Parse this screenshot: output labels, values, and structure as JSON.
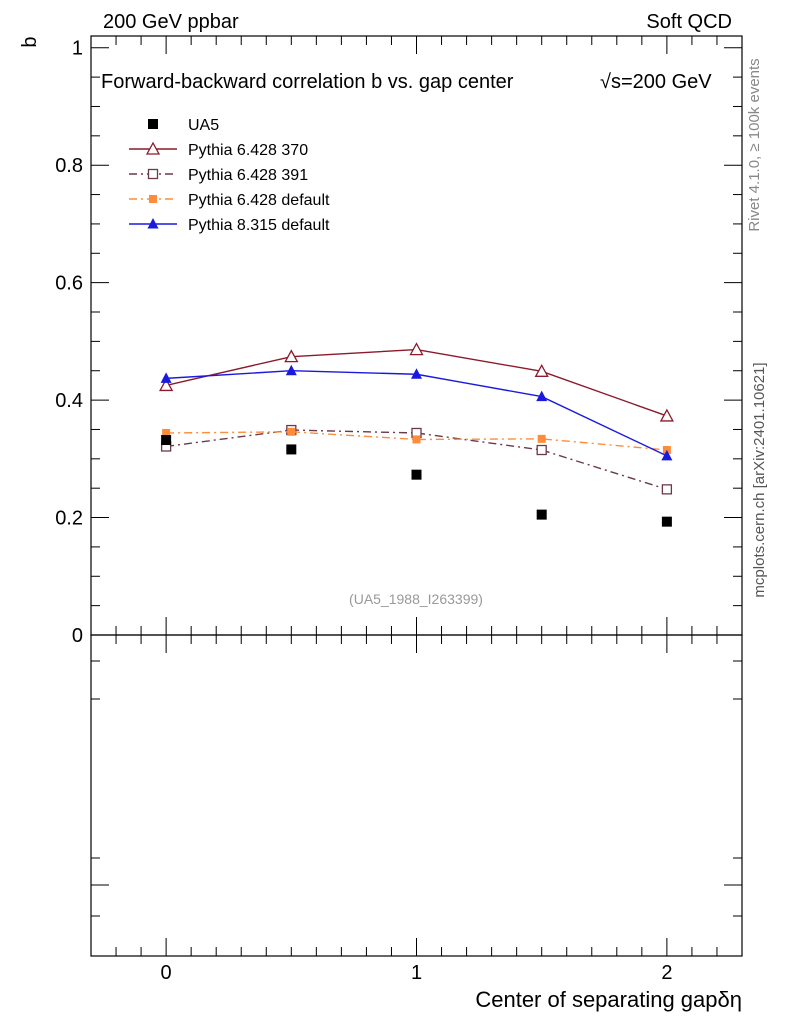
{
  "header": {
    "left": "200 GeV ppbar",
    "right": "Soft QCD"
  },
  "side_labels": {
    "rivet": "Rivet 4.1.0, ≥ 100k events",
    "mcplots": "mcplots.cern.ch [arXiv:2401.10621]"
  },
  "reference_tag": "(UA5_1988_I263399)",
  "colors": {
    "ua5": "#000000",
    "p370": "#8b1a2b",
    "p391": "#6b3a4a",
    "p6def": "#ff8c3a",
    "p8def": "#1a1adf"
  },
  "chart_data": {
    "type": "line",
    "title": "Forward-backward correlation b  vs. gap center",
    "title_suffix": "√s=200 GeV",
    "xlabel": "Center of separating gapδη",
    "ylabel": "b",
    "xlim": [
      -0.3,
      2.3
    ],
    "ylim": [
      0,
      1.02
    ],
    "x_ticks": [
      "0",
      "1",
      "2"
    ],
    "y_ticks": [
      "0",
      "0.2",
      "0.4",
      "0.6",
      "0.8",
      "1"
    ],
    "x": [
      0,
      0.5,
      1,
      1.5,
      2
    ],
    "series": [
      {
        "name": "UA5",
        "marker": "square-filled",
        "line": "none",
        "color_key": "ua5",
        "values": [
          0.332,
          0.316,
          0.273,
          0.205,
          0.193
        ]
      },
      {
        "name": "Pythia 6.428 370",
        "marker": "triangle-open",
        "line": "solid",
        "color_key": "p370",
        "values": [
          0.425,
          0.474,
          0.486,
          0.449,
          0.373
        ]
      },
      {
        "name": "Pythia 6.428 391",
        "marker": "square-open",
        "line": "dashdot",
        "color_key": "p391",
        "values": [
          0.321,
          0.349,
          0.344,
          0.315,
          0.248
        ]
      },
      {
        "name": "Pythia 6.428 default",
        "marker": "square-filled-small",
        "line": "dashdot",
        "color_key": "p6def",
        "values": [
          0.344,
          0.346,
          0.333,
          0.334,
          0.315
        ]
      },
      {
        "name": "Pythia 8.315 default",
        "marker": "triangle-filled",
        "line": "solid",
        "color_key": "p8def",
        "values": [
          0.437,
          0.45,
          0.444,
          0.406,
          0.305
        ]
      }
    ]
  }
}
